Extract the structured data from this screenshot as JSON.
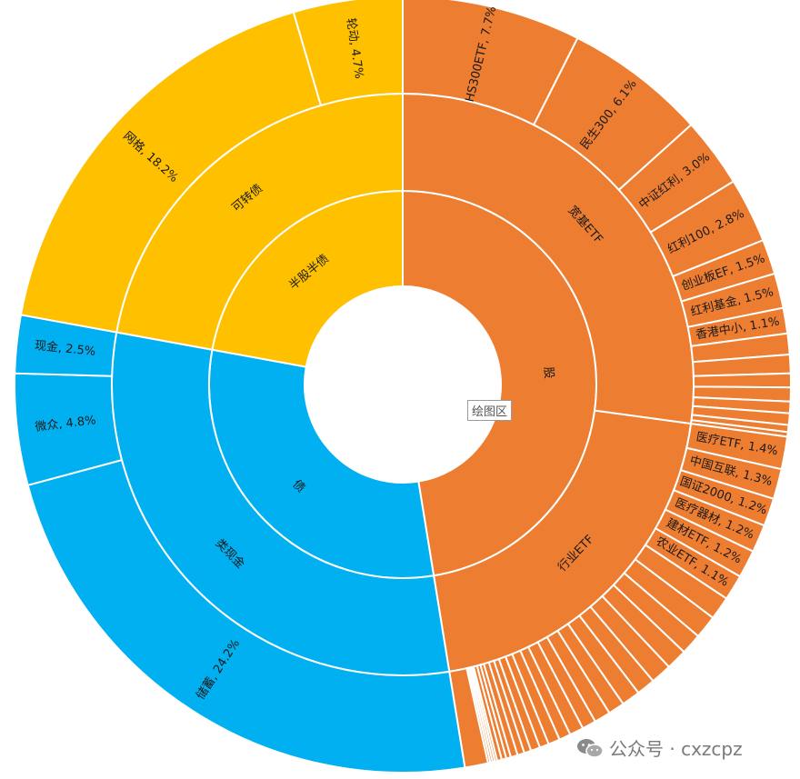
{
  "chart_data": {
    "type": "sunburst",
    "colors": {
      "股": "#ED7D31",
      "债": "#00B0F0",
      "半股半债": "#FFC000"
    },
    "hierarchy": [
      {
        "name": "股",
        "children": [
          {
            "name": "宽基ETF",
            "children": [
              {
                "name": "HS300ETF",
                "label": "HS300ETF, 7.7%",
                "value": 7.7
              },
              {
                "name": "民生300",
                "label": "民生300, 6.1%",
                "value": 6.1
              },
              {
                "name": "中证红利",
                "label": "中证红利, 3.0%",
                "value": 3.0
              },
              {
                "name": "红利100",
                "label": "红利100, 2.8%",
                "value": 2.8
              },
              {
                "name": "创业板EF",
                "label": "创业板EF, 1.5%",
                "value": 1.5
              },
              {
                "name": "红利基金",
                "label": "红利基金, 1.5%",
                "value": 1.5
              },
              {
                "name": "香港中小",
                "label": "香港中小, 1.1%",
                "value": 1.1
              },
              {
                "name": "",
                "label": "",
                "value": 0.9
              },
              {
                "name": "",
                "label": "",
                "value": 0.8
              },
              {
                "name": "",
                "label": "",
                "value": 0.6
              },
              {
                "name": "",
                "label": "",
                "value": 0.6
              },
              {
                "name": "",
                "label": "",
                "value": 0.5
              },
              {
                "name": "",
                "label": "",
                "value": 0.5
              },
              {
                "name": "",
                "label": "",
                "value": 0.3
              },
              {
                "name": "",
                "label": "",
                "value": 0.2
              }
            ]
          },
          {
            "name": "行业ETF",
            "children": [
              {
                "name": "医疗ETF",
                "label": "医疗ETF, 1.4%",
                "value": 1.4
              },
              {
                "name": "中国互联",
                "label": "中国互联, 1.3%",
                "value": 1.3
              },
              {
                "name": "国证2000",
                "label": "国证2000, 1.2%",
                "value": 1.2
              },
              {
                "name": "医疗器材",
                "label": "医疗器材, 1.2%",
                "value": 1.2
              },
              {
                "name": "建材ETF",
                "label": "建材ETF, 1.2%",
                "value": 1.2
              },
              {
                "name": "农业ETF",
                "label": "农业ETF, 1.1%",
                "value": 1.1
              },
              {
                "name": "",
                "label": "",
                "value": 1.0
              },
              {
                "name": "",
                "label": "",
                "value": 1.0
              },
              {
                "name": "",
                "label": "",
                "value": 0.9
              },
              {
                "name": "",
                "label": "",
                "value": 0.9
              },
              {
                "name": "",
                "label": "",
                "value": 0.9
              },
              {
                "name": "",
                "label": "",
                "value": 0.8
              },
              {
                "name": "",
                "label": "",
                "value": 0.8
              },
              {
                "name": "",
                "label": "",
                "value": 0.7
              },
              {
                "name": "",
                "label": "",
                "value": 0.7
              },
              {
                "name": "",
                "label": "",
                "value": 0.6
              },
              {
                "name": "",
                "label": "",
                "value": 0.6
              },
              {
                "name": "",
                "label": "",
                "value": 0.5
              },
              {
                "name": "",
                "label": "",
                "value": 0.5
              },
              {
                "name": "",
                "label": "",
                "value": 0.4
              },
              {
                "name": "",
                "label": "",
                "value": 0.4
              },
              {
                "name": "",
                "label": "",
                "value": 0.3
              },
              {
                "name": "",
                "label": "",
                "value": 0.3
              },
              {
                "name": "",
                "label": "",
                "value": 0.3
              },
              {
                "name": "",
                "label": "",
                "value": 0.2
              },
              {
                "name": "",
                "label": "",
                "value": 0.2
              },
              {
                "name": "",
                "label": "",
                "value": 0.2
              },
              {
                "name": "",
                "label": "",
                "value": 0.1
              },
              {
                "name": "",
                "label": "",
                "value": 0.1
              },
              {
                "name": "",
                "label": "",
                "value": 0.1
              },
              {
                "name": "",
                "label": "",
                "value": 0.1
              },
              {
                "name": "",
                "label": "",
                "value": 1.0
              }
            ]
          }
        ]
      },
      {
        "name": "债",
        "children": [
          {
            "name": "类现金",
            "children": [
              {
                "name": "储蓄",
                "label": "储蓄, 24.2%",
                "value": 24.2
              },
              {
                "name": "微众",
                "label": "微众, 4.8%",
                "value": 4.8
              },
              {
                "name": "现金",
                "label": "现金, 2.5%",
                "value": 2.5
              }
            ]
          }
        ]
      },
      {
        "name": "半股半债",
        "children": [
          {
            "name": "可转债",
            "children": [
              {
                "name": "网格",
                "label": "网格, 18.2%",
                "value": 18.2
              },
              {
                "name": "轮动",
                "label": "轮动, 4.7%",
                "value": 4.7
              }
            ]
          }
        ]
      }
    ]
  },
  "tooltip": {
    "text": "绘图区"
  },
  "watermark": {
    "text": "公众号 · cxzcpz"
  }
}
